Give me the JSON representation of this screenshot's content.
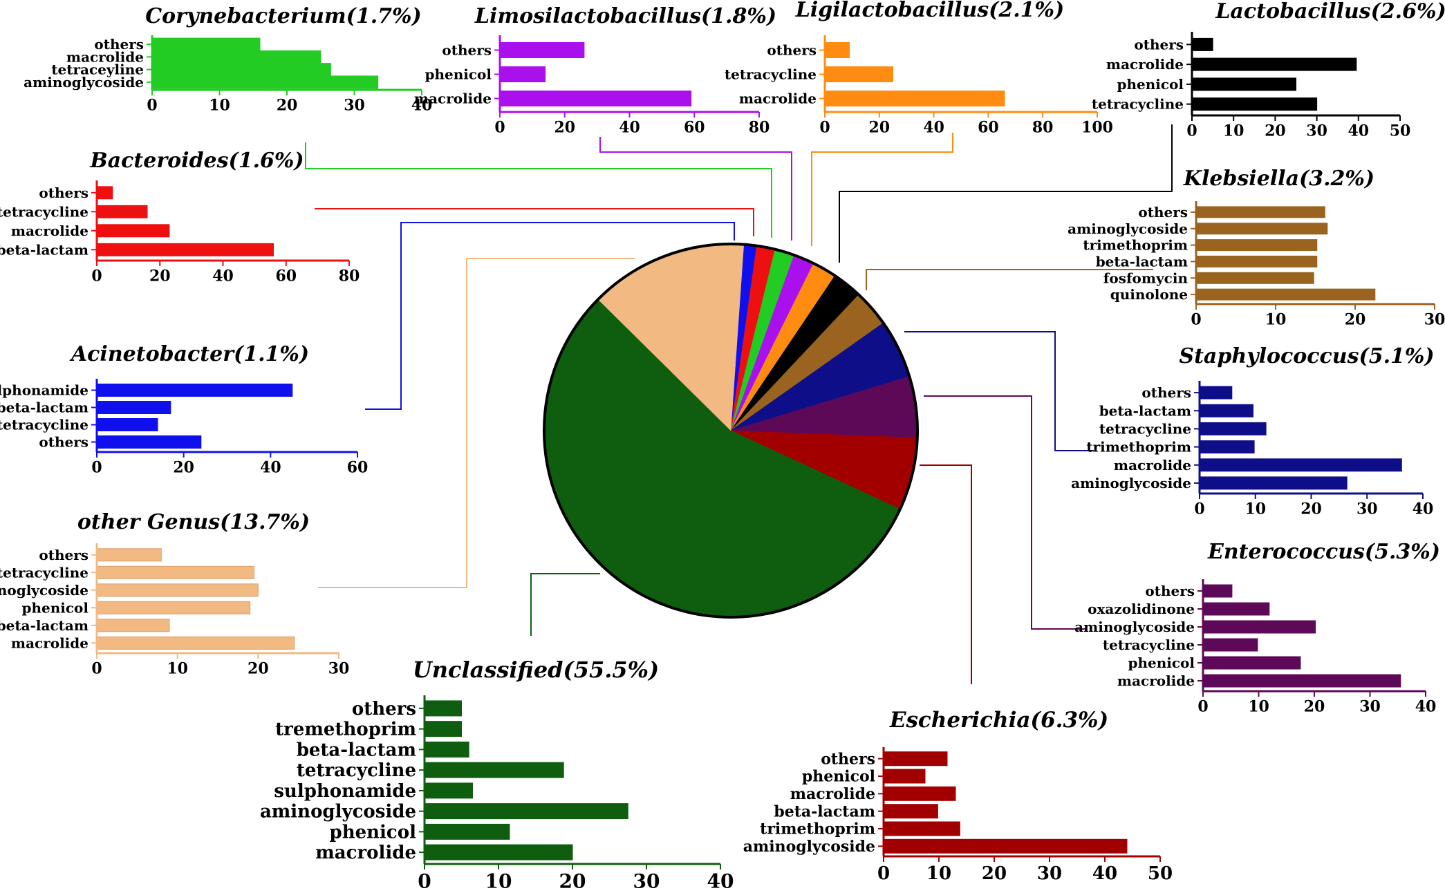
{
  "chart_data": [
    {
      "type": "pie",
      "labels": [
        "Acinetobacter",
        "Bacteroides",
        "Corynebacterium",
        "Limosilactobacillus",
        "Ligilactobacillus",
        "Lactobacillus",
        "Klebsiella",
        "Staphylococcus",
        "Enterococcus",
        "Escherichia",
        "Unclassified",
        "other Genus"
      ],
      "values": [
        1.1,
        1.6,
        1.7,
        1.8,
        2.1,
        2.6,
        3.2,
        5.1,
        5.3,
        6.3,
        55.5,
        13.7
      ],
      "colors": [
        "#1010ee",
        "#ee1010",
        "#22cc22",
        "#aa10ee",
        "#ff8c10",
        "#000000",
        "#9b6320",
        "#0e0e88",
        "#5e0858",
        "#a20000",
        "#0f5e0f",
        "#f2b983"
      ]
    },
    {
      "type": "bar",
      "orientation": "horizontal",
      "title": "Corynebacterium(1.7%)",
      "color": "#22cc22",
      "categories": [
        "others",
        "macrolide",
        "tetraceyline",
        "aminoglycoside"
      ],
      "values": [
        16,
        25,
        26.5,
        33.5
      ],
      "xlim": [
        0,
        40
      ],
      "xticks": [
        "0",
        "10",
        "20",
        "30",
        "40"
      ]
    },
    {
      "type": "bar",
      "orientation": "horizontal",
      "title": "Limosilactobacillus(1.8%)",
      "color": "#aa10ee",
      "categories": [
        "others",
        "phenicol",
        "macrolide"
      ],
      "values": [
        26,
        14,
        59
      ],
      "xlim": [
        0,
        80
      ],
      "xticks": [
        "0",
        "20",
        "40",
        "60",
        "80"
      ]
    },
    {
      "type": "bar",
      "orientation": "horizontal",
      "title": "Ligilactobacillus(2.1%)",
      "color": "#ff8c10",
      "categories": [
        "others",
        "tetracycline",
        "macrolide"
      ],
      "values": [
        9,
        25,
        66
      ],
      "xlim": [
        0,
        100
      ],
      "xticks": [
        "0",
        "20",
        "40",
        "60",
        "80",
        "100"
      ]
    },
    {
      "type": "bar",
      "orientation": "horizontal",
      "title": "Lactobacillus(2.6%)",
      "color": "#000000",
      "categories": [
        "others",
        "macrolide",
        "phenicol",
        "tetracycline"
      ],
      "values": [
        5,
        39.5,
        25,
        30
      ],
      "xlim": [
        0,
        50
      ],
      "xticks": [
        "0",
        "10",
        "20",
        "30",
        "40",
        "50"
      ]
    },
    {
      "type": "bar",
      "orientation": "horizontal",
      "title": "Bacteroides(1.6%)",
      "color": "#ee1010",
      "categories": [
        "others",
        "tetracycline",
        "macrolide",
        "beta-lactam"
      ],
      "values": [
        5,
        16,
        23,
        56
      ],
      "xlim": [
        0,
        80
      ],
      "xticks": [
        "0",
        "20",
        "40",
        "60",
        "80"
      ]
    },
    {
      "type": "bar",
      "orientation": "horizontal",
      "title": "Klebsiella(3.2%)",
      "color": "#9b6320",
      "categories": [
        "others",
        "aminoglycoside",
        "trimethoprim",
        "beta-lactam",
        "fosfomycin",
        "quinolone"
      ],
      "values": [
        16.2,
        16.5,
        15.2,
        15.2,
        14.8,
        22.5
      ],
      "xlim": [
        0,
        30
      ],
      "xticks": [
        "0",
        "10",
        "20",
        "30"
      ]
    },
    {
      "type": "bar",
      "orientation": "horizontal",
      "title": "Acinetobacter(1.1%)",
      "color": "#1010ee",
      "categories": [
        "sulphonamide",
        "beta-lactam",
        "tetracycline",
        "others"
      ],
      "values": [
        45,
        17,
        14,
        24
      ],
      "xlim": [
        0,
        60
      ],
      "xticks": [
        "0",
        "20",
        "40",
        "60"
      ]
    },
    {
      "type": "bar",
      "orientation": "horizontal",
      "title": "Staphylococcus(5.1%)",
      "color": "#0e0e88",
      "categories": [
        "others",
        "beta-lactam",
        "tetracycline",
        "trimethoprim",
        "macrolide",
        "aminoglycoside"
      ],
      "values": [
        5.8,
        9.6,
        11.9,
        9.8,
        36.2,
        26.4
      ],
      "xlim": [
        0,
        40
      ],
      "xticks": [
        "0",
        "10",
        "20",
        "30",
        "40"
      ]
    },
    {
      "type": "bar",
      "orientation": "horizontal",
      "title": "other Genus(13.7%)",
      "color": "#f2b983",
      "categories": [
        "others",
        "tetracycline",
        "aminoglycoside",
        "phenicol",
        "beta-lactam",
        "macrolide"
      ],
      "values": [
        8,
        19.5,
        20,
        19,
        9,
        24.5
      ],
      "xlim": [
        0,
        30
      ],
      "xticks": [
        "0",
        "10",
        "20",
        "30"
      ]
    },
    {
      "type": "bar",
      "orientation": "horizontal",
      "title": "Enterococcus(5.3%)",
      "color": "#5e0858",
      "categories": [
        "others",
        "oxazolidinone",
        "aminoglycoside",
        "tetracycline",
        "phenicol",
        "macrolide"
      ],
      "values": [
        5.2,
        11.9,
        20.2,
        9.8,
        17.5,
        35.5
      ],
      "xlim": [
        0,
        40
      ],
      "xticks": [
        "0",
        "10",
        "20",
        "30",
        "40"
      ]
    },
    {
      "type": "bar",
      "orientation": "horizontal",
      "title": "Unclassified(55.5%)",
      "color": "#0f5e0f",
      "categories": [
        "others",
        "tremethoprim",
        "beta-lactam",
        "tetracycline",
        "sulphonamide",
        "aminoglycoside",
        "phenicol",
        "macrolide"
      ],
      "values": [
        5,
        5,
        6,
        18.8,
        6.5,
        27.5,
        11.5,
        20
      ],
      "xlim": [
        0,
        40
      ],
      "xticks": [
        "0",
        "10",
        "20",
        "30",
        "40"
      ]
    },
    {
      "type": "bar",
      "orientation": "horizontal",
      "title": "Escherichia(6.3%)",
      "color": "#a20000",
      "categories": [
        "others",
        "phenicol",
        "macrolide",
        "beta-lactam",
        "trimethoprim",
        "aminoglycoside"
      ],
      "values": [
        11.5,
        7.5,
        13,
        9.8,
        13.8,
        44
      ],
      "xlim": [
        0,
        50
      ],
      "xticks": [
        "0",
        "10",
        "20",
        "30",
        "40",
        "50"
      ]
    }
  ]
}
